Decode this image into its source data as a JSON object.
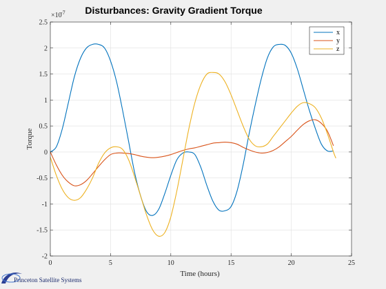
{
  "footer": {
    "logo_text": "Princeton Satellite Systems"
  },
  "chart_data": {
    "type": "line",
    "title": "Disturbances: Gravity Gradient Torque",
    "xlabel": "Time (hours)",
    "ylabel": "Torque",
    "y_exponent_label": "×10",
    "y_exponent_value": "-7",
    "xlim": [
      0,
      25
    ],
    "ylim": [
      -2,
      2.5
    ],
    "xticks": [
      0,
      5,
      10,
      15,
      20,
      25
    ],
    "xtick_labels": [
      "0",
      "5",
      "10",
      "15",
      "20",
      "25"
    ],
    "yticks": [
      -2,
      -1.5,
      -1,
      -0.5,
      0,
      0.5,
      1,
      1.5,
      2,
      2.5
    ],
    "ytick_labels": [
      "-2",
      "-1.5",
      "-1",
      "-0.5",
      "0",
      "0.5",
      "1",
      "1.5",
      "2",
      "2.5"
    ],
    "grid": true,
    "legend_position": "top-right",
    "series": [
      {
        "name": "x",
        "color": "#0072BD",
        "x": [
          0,
          0.5,
          1,
          1.5,
          2,
          2.5,
          3,
          3.5,
          4,
          4.5,
          5,
          5.5,
          6,
          6.5,
          7,
          7.5,
          8,
          8.5,
          9,
          9.5,
          10,
          10.5,
          11,
          11.5,
          12,
          12.5,
          13,
          13.5,
          14,
          14.5,
          15,
          15.5,
          16,
          16.5,
          17,
          17.5,
          18,
          18.5,
          19,
          19.5,
          20,
          20.5,
          21,
          21.5,
          22,
          22.5,
          23,
          23.5
        ],
        "y": [
          0,
          0.1,
          0.45,
          0.95,
          1.45,
          1.8,
          2.0,
          2.07,
          2.07,
          2.0,
          1.75,
          1.35,
          0.8,
          0.2,
          -0.4,
          -0.85,
          -1.15,
          -1.22,
          -1.1,
          -0.8,
          -0.45,
          -0.15,
          -0.02,
          0,
          -0.05,
          -0.3,
          -0.65,
          -0.95,
          -1.12,
          -1.13,
          -1.05,
          -0.75,
          -0.25,
          0.35,
          0.9,
          1.4,
          1.8,
          2.02,
          2.07,
          2.05,
          1.9,
          1.6,
          1.2,
          0.8,
          0.45,
          0.15,
          0.02,
          0.02
        ]
      },
      {
        "name": "y",
        "color": "#D95319",
        "x": [
          0,
          0.5,
          1,
          1.5,
          2,
          2.5,
          3,
          3.5,
          4,
          4.5,
          5,
          5.5,
          6,
          6.5,
          7,
          7.5,
          8,
          8.5,
          9,
          9.5,
          10,
          10.5,
          11,
          11.5,
          12,
          12.5,
          13,
          13.5,
          14,
          14.5,
          15,
          15.5,
          16,
          16.5,
          17,
          17.5,
          18,
          18.5,
          19,
          19.5,
          20,
          20.5,
          21,
          21.5,
          22,
          22.5,
          23,
          23.5
        ],
        "y": [
          0,
          -0.25,
          -0.45,
          -0.58,
          -0.65,
          -0.63,
          -0.55,
          -0.42,
          -0.28,
          -0.15,
          -0.05,
          -0.02,
          -0.02,
          -0.03,
          -0.05,
          -0.08,
          -0.1,
          -0.11,
          -0.1,
          -0.08,
          -0.05,
          -0.01,
          0.03,
          0.06,
          0.08,
          0.11,
          0.14,
          0.17,
          0.18,
          0.19,
          0.18,
          0.15,
          0.09,
          0.04,
          0.0,
          -0.02,
          -0.01,
          0.03,
          0.1,
          0.2,
          0.3,
          0.42,
          0.53,
          0.6,
          0.62,
          0.55,
          0.4,
          0.12
        ]
      },
      {
        "name": "z",
        "color": "#EDB120",
        "x": [
          0,
          0.5,
          1,
          1.5,
          2,
          2.5,
          3,
          3.5,
          4,
          4.5,
          5,
          5.5,
          6,
          6.5,
          7,
          7.5,
          8,
          8.5,
          9,
          9.5,
          10,
          10.5,
          11,
          11.5,
          12,
          12.5,
          13,
          13.5,
          14,
          14.5,
          15,
          15.5,
          16,
          16.5,
          17,
          17.5,
          18,
          18.5,
          19,
          19.5,
          20,
          20.5,
          21,
          21.5,
          22,
          22.5,
          23,
          23.5,
          23.7
        ],
        "y": [
          -0.1,
          -0.45,
          -0.72,
          -0.88,
          -0.93,
          -0.88,
          -0.72,
          -0.5,
          -0.22,
          -0.02,
          0.08,
          0.1,
          0.05,
          -0.15,
          -0.48,
          -0.85,
          -1.22,
          -1.5,
          -1.62,
          -1.55,
          -1.25,
          -0.75,
          -0.15,
          0.45,
          0.95,
          1.3,
          1.5,
          1.53,
          1.5,
          1.35,
          1.1,
          0.8,
          0.5,
          0.25,
          0.12,
          0.1,
          0.15,
          0.3,
          0.45,
          0.6,
          0.75,
          0.88,
          0.95,
          0.93,
          0.85,
          0.65,
          0.35,
          0.0,
          -0.12
        ]
      }
    ]
  }
}
